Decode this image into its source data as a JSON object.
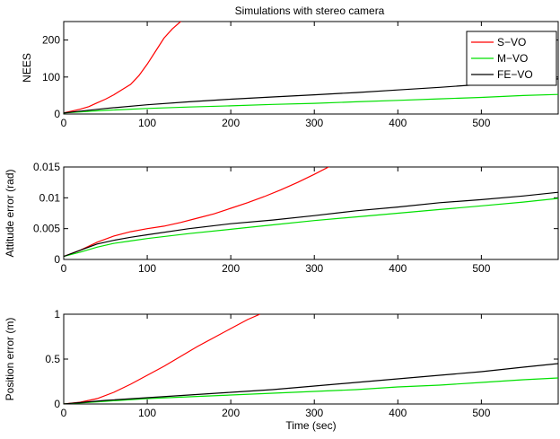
{
  "figure": {
    "title": "Simulations with stereo camera"
  },
  "chart_data": [
    {
      "type": "line",
      "title": "Simulations with stereo camera",
      "xlabel": "",
      "ylabel": "NEES",
      "xlim": [
        0,
        592
      ],
      "ylim": [
        0,
        250
      ],
      "xticks": [
        0,
        100,
        200,
        300,
        400,
        500
      ],
      "xtick_labels": [
        "0",
        "100",
        "200",
        "300",
        "400",
        "500"
      ],
      "yticks": [
        0,
        100,
        200
      ],
      "ytick_labels": [
        "0",
        "100",
        "200"
      ],
      "legend_position": "top-right",
      "grid": false,
      "series": [
        {
          "name": "S−VO",
          "color": "#ff0000",
          "x": [
            0,
            10,
            20,
            30,
            40,
            50,
            60,
            70,
            80,
            90,
            100,
            110,
            120,
            130,
            140,
            150
          ],
          "y": [
            3,
            8,
            13,
            20,
            30,
            40,
            52,
            66,
            80,
            104,
            135,
            170,
            205,
            230,
            250,
            265
          ]
        },
        {
          "name": "M−VO",
          "color": "#00e000",
          "x": [
            0,
            50,
            100,
            150,
            200,
            250,
            300,
            350,
            400,
            450,
            500,
            550,
            592
          ],
          "y": [
            3,
            10,
            15,
            19,
            22,
            26,
            29,
            33,
            37,
            41,
            45,
            50,
            53
          ]
        },
        {
          "name": "FE−VO",
          "color": "#000000",
          "x": [
            0,
            50,
            100,
            150,
            200,
            250,
            300,
            350,
            400,
            450,
            500,
            550,
            592
          ],
          "y": [
            3,
            15,
            25,
            33,
            40,
            46,
            52,
            58,
            65,
            72,
            80,
            88,
            95
          ]
        }
      ]
    },
    {
      "type": "line",
      "xlabel": "",
      "ylabel": "Attitude error (rad)",
      "xlim": [
        0,
        592
      ],
      "ylim": [
        0,
        0.015
      ],
      "xticks": [
        0,
        100,
        200,
        300,
        400,
        500
      ],
      "xtick_labels": [
        "0",
        "100",
        "200",
        "300",
        "400",
        "500"
      ],
      "yticks": [
        0,
        0.005,
        0.01,
        0.015
      ],
      "ytick_labels": [
        "0",
        "0.005",
        "0.01",
        "0.015"
      ],
      "grid": false,
      "series": [
        {
          "name": "S−VO",
          "color": "#ff0000",
          "x": [
            0,
            20,
            40,
            60,
            80,
            100,
            120,
            140,
            160,
            180,
            200,
            220,
            240,
            260,
            280,
            300,
            320
          ],
          "y": [
            0.0005,
            0.0015,
            0.0028,
            0.0038,
            0.0045,
            0.005,
            0.0054,
            0.006,
            0.0067,
            0.0074,
            0.0083,
            0.0092,
            0.0102,
            0.0113,
            0.0125,
            0.0138,
            0.0152
          ]
        },
        {
          "name": "M−VO",
          "color": "#00e000",
          "x": [
            0,
            20,
            40,
            60,
            80,
            100,
            150,
            200,
            250,
            300,
            350,
            400,
            450,
            500,
            550,
            592
          ],
          "y": [
            0.0005,
            0.0012,
            0.002,
            0.0026,
            0.003,
            0.0034,
            0.0042,
            0.0049,
            0.0056,
            0.0063,
            0.0069,
            0.0075,
            0.0081,
            0.0087,
            0.0093,
            0.0099
          ]
        },
        {
          "name": "FE−VO",
          "color": "#000000",
          "x": [
            0,
            20,
            40,
            60,
            80,
            100,
            150,
            200,
            250,
            300,
            350,
            400,
            450,
            500,
            550,
            592
          ],
          "y": [
            0.0005,
            0.0015,
            0.0025,
            0.0031,
            0.0036,
            0.004,
            0.005,
            0.0058,
            0.0064,
            0.0071,
            0.0079,
            0.0085,
            0.0092,
            0.0097,
            0.0103,
            0.0109
          ]
        }
      ]
    },
    {
      "type": "line",
      "xlabel": "Time (sec)",
      "ylabel": "Position error (m)",
      "xlim": [
        0,
        592
      ],
      "ylim": [
        0,
        1
      ],
      "xticks": [
        0,
        100,
        200,
        300,
        400,
        500
      ],
      "xtick_labels": [
        "0",
        "100",
        "200",
        "300",
        "400",
        "500"
      ],
      "yticks": [
        0,
        0.5,
        1
      ],
      "ytick_labels": [
        "0",
        "0.5",
        "1"
      ],
      "grid": false,
      "series": [
        {
          "name": "S−VO",
          "color": "#ff0000",
          "x": [
            0,
            20,
            40,
            60,
            80,
            100,
            120,
            140,
            160,
            180,
            200,
            220,
            235
          ],
          "y": [
            0.0,
            0.02,
            0.06,
            0.13,
            0.22,
            0.32,
            0.42,
            0.53,
            0.64,
            0.74,
            0.84,
            0.94,
            1.0
          ]
        },
        {
          "name": "M−VO",
          "color": "#00e000",
          "x": [
            0,
            50,
            100,
            150,
            200,
            250,
            300,
            350,
            400,
            450,
            500,
            550,
            592
          ],
          "y": [
            0.0,
            0.03,
            0.06,
            0.08,
            0.1,
            0.12,
            0.14,
            0.16,
            0.19,
            0.21,
            0.24,
            0.27,
            0.29
          ]
        },
        {
          "name": "FE−VO",
          "color": "#000000",
          "x": [
            0,
            50,
            100,
            150,
            200,
            250,
            300,
            350,
            400,
            450,
            500,
            550,
            592
          ],
          "y": [
            0.0,
            0.04,
            0.07,
            0.1,
            0.13,
            0.16,
            0.2,
            0.24,
            0.28,
            0.32,
            0.36,
            0.41,
            0.45
          ]
        }
      ]
    }
  ]
}
